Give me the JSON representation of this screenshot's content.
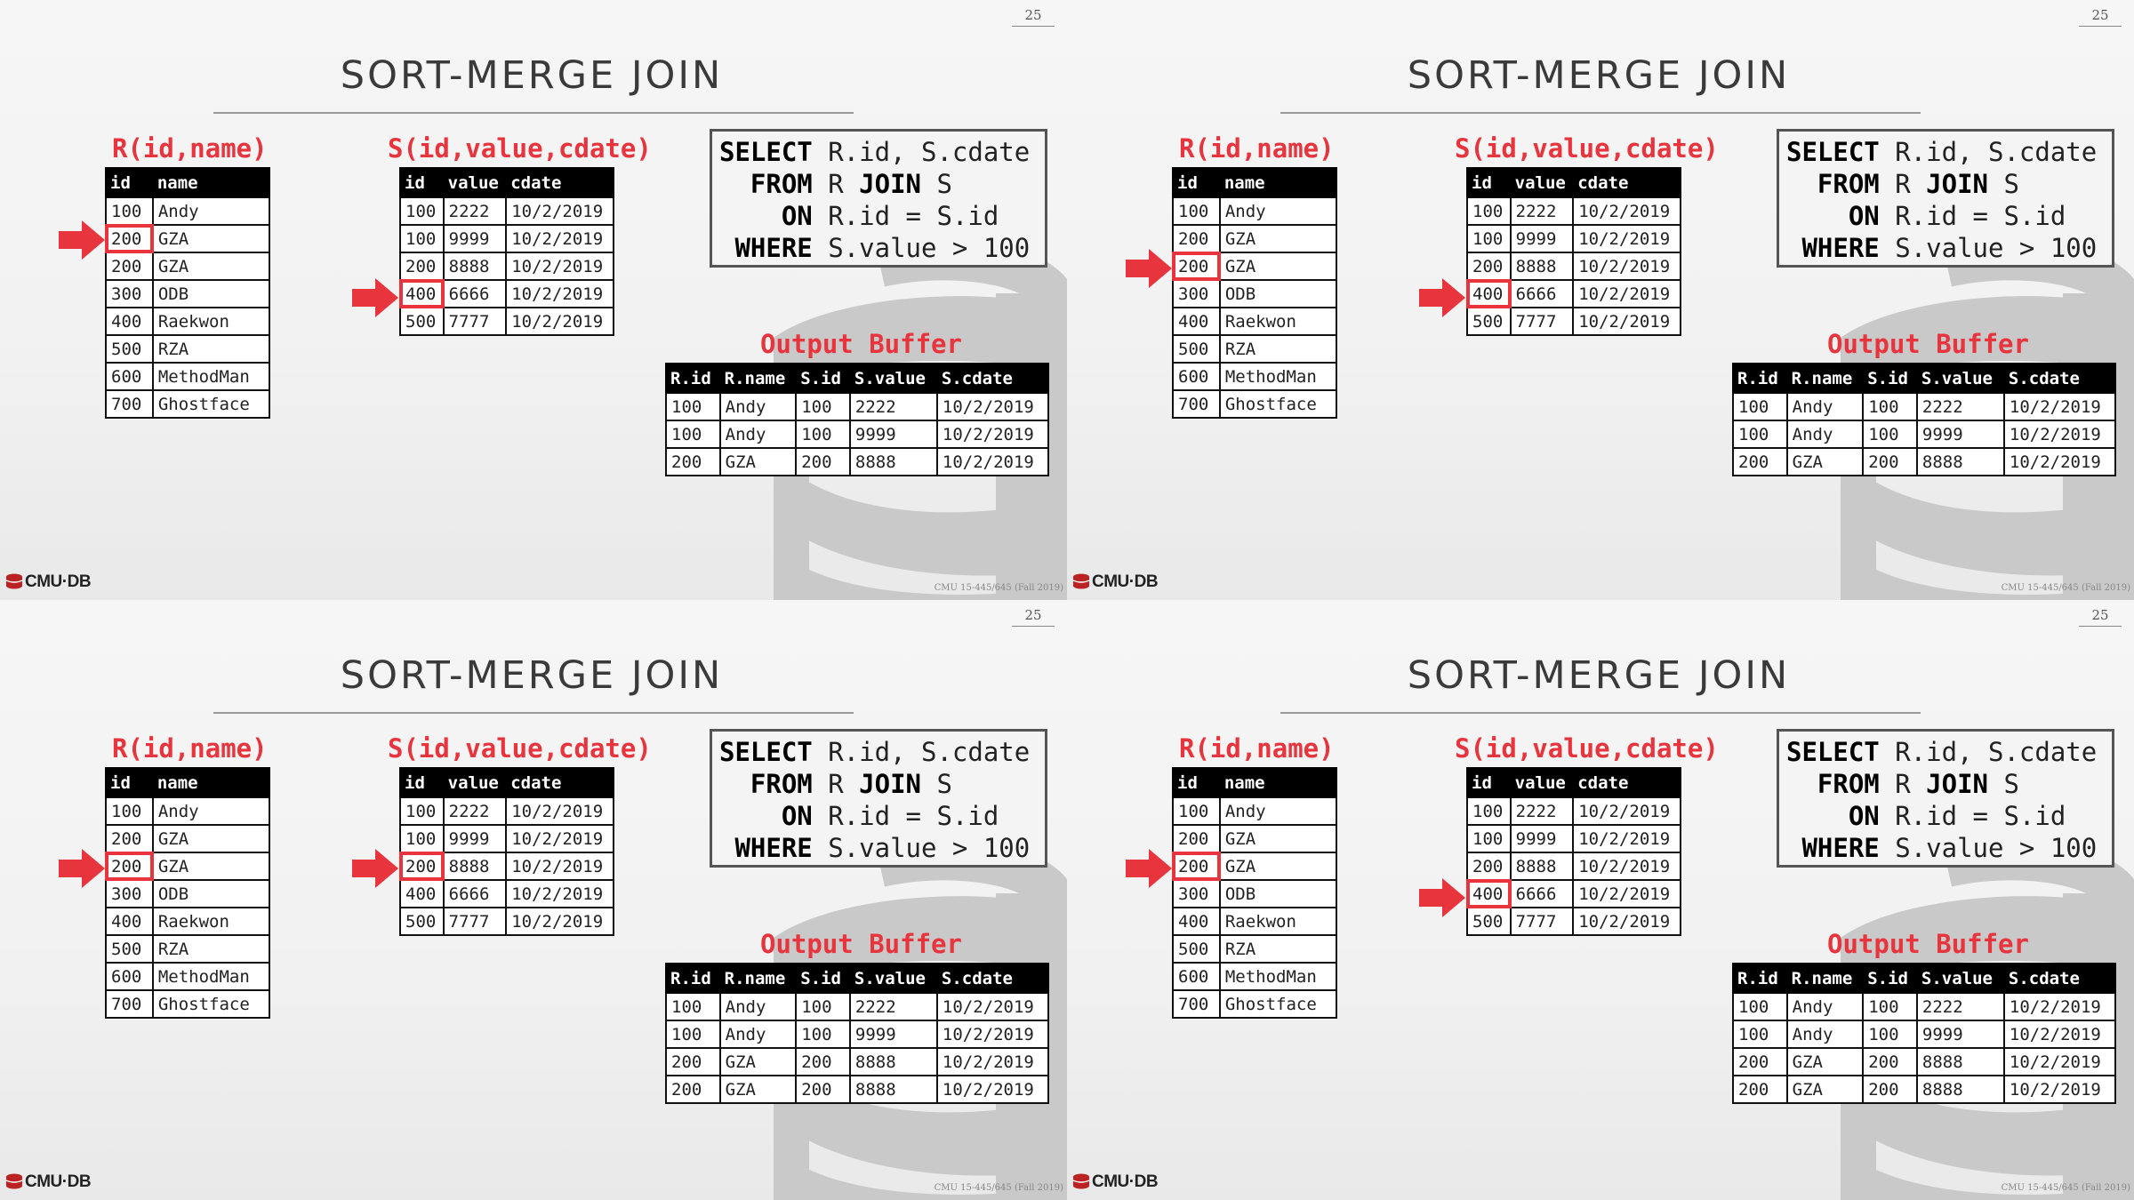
{
  "page_number": "25",
  "title": "SORT-MERGE JOIN",
  "r_label": "R(id,name)",
  "s_label": "S(id,value,cdate)",
  "sql": {
    "select_kw": "SELECT",
    "select_rest": " R.id, S.cdate",
    "from_kw": "FROM",
    "from_rest": " R ",
    "join_kw": "JOIN",
    "join_rest": " S",
    "on_kw": "ON",
    "on_rest": " R.id = S.id",
    "where_kw": "WHERE",
    "where_rest": " S.value > 100"
  },
  "output_label": "Output Buffer",
  "r_table": {
    "headers": [
      "id",
      "name"
    ],
    "rows": [
      [
        "100",
        "Andy"
      ],
      [
        "200",
        "GZA"
      ],
      [
        "200",
        "GZA"
      ],
      [
        "300",
        "ODB"
      ],
      [
        "400",
        "Raekwon"
      ],
      [
        "500",
        "RZA"
      ],
      [
        "600",
        "MethodMan"
      ],
      [
        "700",
        "Ghostface"
      ]
    ]
  },
  "s_table": {
    "headers": [
      "id",
      "value",
      "cdate"
    ],
    "rows": [
      [
        "100",
        "2222",
        "10/2/2019"
      ],
      [
        "100",
        "9999",
        "10/2/2019"
      ],
      [
        "200",
        "8888",
        "10/2/2019"
      ],
      [
        "400",
        "6666",
        "10/2/2019"
      ],
      [
        "500",
        "7777",
        "10/2/2019"
      ]
    ]
  },
  "output_table": {
    "headers": [
      "R.id",
      "R.name",
      "S.id",
      "S.value",
      "S.cdate"
    ],
    "rows": [
      [
        "100",
        "Andy",
        "100",
        "2222",
        "10/2/2019"
      ],
      [
        "100",
        "Andy",
        "100",
        "9999",
        "10/2/2019"
      ],
      [
        "200",
        "GZA",
        "200",
        "8888",
        "10/2/2019"
      ],
      [
        "200",
        "GZA",
        "200",
        "8888",
        "10/2/2019"
      ]
    ]
  },
  "slides": [
    {
      "r_pointer": 1,
      "s_pointer": 3,
      "output_rows": 3
    },
    {
      "r_pointer": 2,
      "s_pointer": 3,
      "output_rows": 3
    },
    {
      "r_pointer": 2,
      "s_pointer": 2,
      "output_rows": 4
    },
    {
      "r_pointer": 2,
      "s_pointer": 3,
      "output_rows": 4
    }
  ],
  "logo_text": "CMU·DB",
  "course_text": "CMU 15-445/645 (Fall 2019)",
  "colors": {
    "accent": "#e8343c",
    "header_bg": "#000000"
  }
}
